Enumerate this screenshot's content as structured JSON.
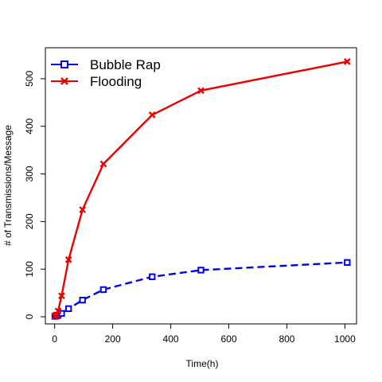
{
  "chart_data": {
    "type": "line",
    "title": "",
    "xlabel": "Time(h)",
    "ylabel": "# of Transmissions/Message",
    "xlim": [
      -32,
      1040
    ],
    "ylim": [
      -15,
      565
    ],
    "xticks": [
      0,
      200,
      400,
      600,
      800,
      1000
    ],
    "yticks": [
      0,
      100,
      200,
      300,
      400,
      500
    ],
    "grid": false,
    "legend_position": "top-left",
    "series": [
      {
        "name": "Bubble Rap",
        "color": "#0000ee",
        "line_style": "dashed",
        "marker": "square",
        "x": [
          1,
          3,
          6,
          12,
          24,
          48,
          96,
          168,
          336,
          504,
          1008
        ],
        "y": [
          1,
          1.5,
          2,
          3,
          7,
          17,
          35,
          57,
          84,
          98,
          114
        ]
      },
      {
        "name": "Flooding",
        "color": "#ee0000",
        "line_style": "solid",
        "marker": "x",
        "x": [
          1,
          3,
          6,
          12,
          24,
          48,
          96,
          168,
          336,
          504,
          1008
        ],
        "y": [
          1,
          2,
          4,
          12,
          44,
          120,
          225,
          321,
          424,
          475,
          536
        ]
      }
    ]
  }
}
